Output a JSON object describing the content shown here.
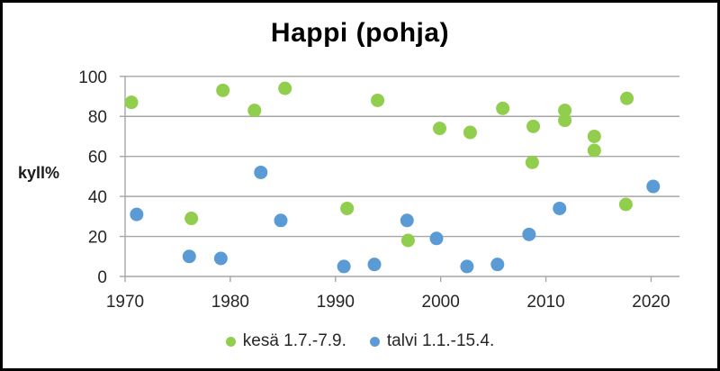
{
  "chart": {
    "title": "Happi (pohja)",
    "ylabel": "kyll%"
  },
  "chart_data": {
    "type": "scatter",
    "title": "Happi (pohja)",
    "xlabel": "",
    "ylabel": "kyll%",
    "xlim": [
      1970,
      2022.7
    ],
    "ylim": [
      0,
      100
    ],
    "xticks": [
      1970,
      1980,
      1990,
      2000,
      2010,
      2020
    ],
    "yticks": [
      0,
      20,
      40,
      60,
      80,
      100
    ],
    "grid": "horizontal-major",
    "legend_position": "bottom",
    "colors": {
      "axis": "#a6a6a6",
      "gridline": "#a6a6a6",
      "tick_text": "#262626"
    },
    "marker_diameter_px": 15,
    "series": [
      {
        "name": "kesä 1.7.-7.9.",
        "color": "#92ce4e",
        "points": [
          [
            1970.6,
            87
          ],
          [
            1976.3,
            29
          ],
          [
            1979.3,
            93
          ],
          [
            1982.3,
            83
          ],
          [
            1985.2,
            94
          ],
          [
            1991.1,
            34
          ],
          [
            1994.0,
            88
          ],
          [
            1996.9,
            18
          ],
          [
            1999.9,
            74
          ],
          [
            2002.8,
            72
          ],
          [
            2005.9,
            84
          ],
          [
            2008.7,
            57
          ],
          [
            2008.8,
            75
          ],
          [
            2011.8,
            83
          ],
          [
            2011.8,
            78
          ],
          [
            2014.6,
            70
          ],
          [
            2014.6,
            63
          ],
          [
            2017.6,
            36
          ],
          [
            2017.7,
            89
          ]
        ]
      },
      {
        "name": "talvi 1.1.-15.4.",
        "color": "#5b9bd5",
        "points": [
          [
            1971.1,
            31
          ],
          [
            1976.1,
            10
          ],
          [
            1979.1,
            9
          ],
          [
            1982.9,
            52
          ],
          [
            1984.8,
            28
          ],
          [
            1990.8,
            5
          ],
          [
            1993.7,
            6
          ],
          [
            1996.8,
            28
          ],
          [
            1999.6,
            19
          ],
          [
            2002.5,
            5
          ],
          [
            2005.4,
            6
          ],
          [
            2008.4,
            21
          ],
          [
            2011.3,
            34
          ],
          [
            2020.2,
            45
          ]
        ]
      }
    ]
  }
}
